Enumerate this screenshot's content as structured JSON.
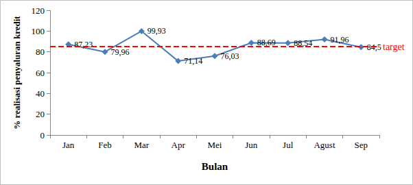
{
  "chart_data": {
    "type": "line",
    "x_label": "Bulan",
    "y_label": "% realisasi penyaluran kredit",
    "categories": [
      "Jan",
      "Feb",
      "Mar",
      "Apr",
      "Mei",
      "Jun",
      "Jul",
      "Agust",
      "Sep"
    ],
    "values": [
      87.23,
      79.96,
      99.93,
      71.14,
      76.03,
      88.69,
      88.54,
      91.96,
      84.5
    ],
    "value_labels": [
      "87,23",
      "79,96",
      "99,93",
      "71,14",
      "76,03",
      "88,69",
      "88,54",
      "91,96",
      "84,5"
    ],
    "color": "#4a7ebb",
    "marker": "diamond",
    "data_labels": true,
    "grid": false,
    "ylim": [
      0,
      120
    ],
    "yticks": [
      0,
      20,
      40,
      60,
      80,
      100,
      120
    ],
    "annotations": [
      {
        "text": "target",
        "y": 85,
        "color": "#ff0000",
        "line_style": "dashed"
      }
    ]
  }
}
